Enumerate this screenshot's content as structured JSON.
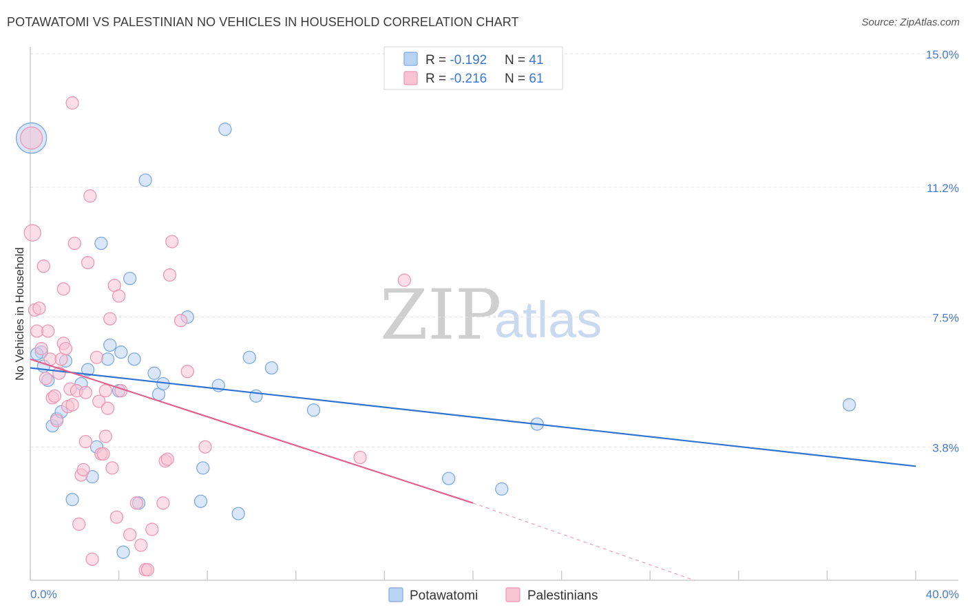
{
  "title": "POTAWATOMI VS PALESTINIAN NO VEHICLES IN HOUSEHOLD CORRELATION CHART",
  "source": "Source: ZipAtlas.com",
  "watermark": {
    "zip": "ZIP",
    "atlas": "atlas"
  },
  "colors": {
    "potawatomi_fill": "#b9d3f3",
    "potawatomi_stroke": "#7fa9df",
    "potawatomi_line": "#2f74d0",
    "palestinians_fill": "#f8c3d3",
    "palestinians_stroke": "#ec98b4",
    "palestinians_line": "#e0608e",
    "grid": "#e3e3e3",
    "tick_text": "#4a7bd0"
  },
  "legend": {
    "rows": [
      {
        "r_label": "R = ",
        "r_value": "-0.192",
        "n_label": "N = ",
        "n_value": "41"
      },
      {
        "r_label": "R = ",
        "r_value": "-0.216",
        "n_label": "N = ",
        "n_value": "61"
      }
    ]
  },
  "chart_data": {
    "type": "scatter",
    "title": "POTAWATOMI VS PALESTINIAN NO VEHICLES IN HOUSEHOLD CORRELATION CHART",
    "xlabel": "",
    "ylabel": "No Vehicles in Household",
    "xlim": [
      0,
      40
    ],
    "ylim": [
      0,
      15.2
    ],
    "x_tick_labels": [
      "0.0%",
      "40.0%"
    ],
    "y_ticks": [
      3.8,
      7.5,
      11.2,
      15.0
    ],
    "y_tick_labels": [
      "3.8%",
      "7.5%",
      "11.2%",
      "15.0%"
    ],
    "legend_position": "top-center",
    "bottom_legend": [
      "Potawatomi",
      "Palestinians"
    ],
    "series": [
      {
        "name": "Potawatomi",
        "trend": {
          "x0": 0,
          "y0": 6.05,
          "x1": 40,
          "y1": 3.25
        },
        "points": [
          [
            0.05,
            12.6,
            22
          ],
          [
            0.5,
            6.5,
            9
          ],
          [
            0.6,
            6.1,
            9
          ],
          [
            0.8,
            5.7,
            9
          ],
          [
            1.0,
            4.4,
            9
          ],
          [
            1.2,
            4.6,
            9
          ],
          [
            1.4,
            4.8,
            9
          ],
          [
            1.6,
            6.25,
            9
          ],
          [
            1.9,
            2.3,
            9
          ],
          [
            2.3,
            5.6,
            9
          ],
          [
            2.6,
            6.0,
            9
          ],
          [
            2.8,
            2.95,
            9
          ],
          [
            3.0,
            3.8,
            9
          ],
          [
            3.2,
            9.6,
            9
          ],
          [
            3.5,
            6.3,
            9
          ],
          [
            3.6,
            6.7,
            9
          ],
          [
            4.0,
            5.4,
            9
          ],
          [
            4.1,
            6.5,
            9
          ],
          [
            4.2,
            0.8,
            9
          ],
          [
            4.5,
            8.6,
            9
          ],
          [
            4.7,
            6.3,
            9
          ],
          [
            4.9,
            2.2,
            9
          ],
          [
            5.2,
            11.4,
            9
          ],
          [
            5.6,
            5.9,
            9
          ],
          [
            5.8,
            5.3,
            9
          ],
          [
            6.0,
            5.6,
            9
          ],
          [
            7.1,
            7.5,
            9
          ],
          [
            7.7,
            2.25,
            9
          ],
          [
            7.8,
            3.2,
            9
          ],
          [
            8.5,
            5.55,
            9
          ],
          [
            8.8,
            12.85,
            9
          ],
          [
            9.4,
            1.9,
            9
          ],
          [
            9.9,
            6.35,
            9
          ],
          [
            10.2,
            5.25,
            9
          ],
          [
            10.9,
            6.05,
            9
          ],
          [
            12.8,
            4.85,
            9
          ],
          [
            18.9,
            2.9,
            9
          ],
          [
            21.3,
            2.6,
            9
          ],
          [
            22.9,
            4.45,
            9
          ],
          [
            37.0,
            5.0,
            9
          ],
          [
            0.3,
            6.45,
            9
          ]
        ]
      },
      {
        "name": "Palestinians",
        "trend": {
          "x0": 0,
          "y0": 6.3,
          "x1": 20,
          "y1": 2.2
        },
        "trend_dashed": {
          "x0": 20,
          "y0": 2.2,
          "x1": 30,
          "y1": 0.0
        },
        "points": [
          [
            0.05,
            12.6,
            16
          ],
          [
            0.1,
            9.9,
            12
          ],
          [
            0.2,
            7.7,
            9
          ],
          [
            0.3,
            7.1,
            9
          ],
          [
            0.4,
            7.75,
            9
          ],
          [
            0.5,
            6.6,
            9
          ],
          [
            0.6,
            8.95,
            9
          ],
          [
            0.7,
            5.75,
            9
          ],
          [
            0.8,
            7.1,
            9
          ],
          [
            0.9,
            6.3,
            9
          ],
          [
            1.0,
            5.2,
            9
          ],
          [
            1.1,
            5.25,
            9
          ],
          [
            1.2,
            4.55,
            9
          ],
          [
            1.3,
            5.9,
            9
          ],
          [
            1.4,
            6.3,
            9
          ],
          [
            1.5,
            6.75,
            9
          ],
          [
            1.6,
            6.6,
            9
          ],
          [
            1.7,
            4.95,
            9
          ],
          [
            1.5,
            8.3,
            9
          ],
          [
            1.8,
            5.45,
            9
          ],
          [
            1.9,
            5.0,
            9
          ],
          [
            2.0,
            9.6,
            9
          ],
          [
            2.1,
            5.4,
            9
          ],
          [
            2.2,
            1.6,
            9
          ],
          [
            2.3,
            3.0,
            9
          ],
          [
            2.4,
            3.15,
            9
          ],
          [
            2.5,
            3.95,
            9
          ],
          [
            2.6,
            9.05,
            9
          ],
          [
            2.7,
            10.95,
            9
          ],
          [
            2.8,
            0.6,
            9
          ],
          [
            3.0,
            6.35,
            9
          ],
          [
            3.1,
            5.1,
            9
          ],
          [
            3.2,
            3.6,
            9
          ],
          [
            3.3,
            3.6,
            9
          ],
          [
            3.4,
            5.4,
            9
          ],
          [
            3.5,
            4.9,
            9
          ],
          [
            3.6,
            7.45,
            9
          ],
          [
            3.7,
            3.2,
            9
          ],
          [
            3.8,
            8.4,
            9
          ],
          [
            3.9,
            1.8,
            9
          ],
          [
            4.0,
            8.1,
            9
          ],
          [
            4.1,
            5.4,
            9
          ],
          [
            4.5,
            1.3,
            9
          ],
          [
            4.8,
            2.2,
            9
          ],
          [
            5.0,
            1.0,
            9
          ],
          [
            5.2,
            0.3,
            9
          ],
          [
            5.3,
            0.3,
            9
          ],
          [
            5.5,
            1.45,
            9
          ],
          [
            6.0,
            2.2,
            9
          ],
          [
            6.1,
            3.4,
            9
          ],
          [
            6.2,
            3.45,
            9
          ],
          [
            6.3,
            8.7,
            9
          ],
          [
            6.4,
            9.65,
            9
          ],
          [
            6.8,
            7.4,
            9
          ],
          [
            7.1,
            5.95,
            9
          ],
          [
            7.9,
            3.8,
            9
          ],
          [
            14.9,
            3.5,
            9
          ],
          [
            16.9,
            8.55,
            9
          ],
          [
            3.4,
            4.1,
            9
          ],
          [
            1.9,
            13.6,
            9
          ],
          [
            2.5,
            5.35,
            9
          ]
        ]
      }
    ]
  }
}
